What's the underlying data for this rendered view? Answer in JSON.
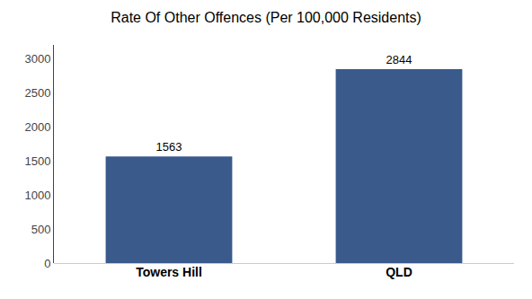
{
  "chart_data": {
    "type": "bar",
    "title": "Rate Of Other Offences (Per 100,000 Residents)",
    "categories": [
      "Towers Hill",
      "QLD"
    ],
    "values": [
      1563,
      2844
    ],
    "color": "#3a5a8c",
    "ylim": [
      0,
      3200
    ],
    "yticks": [
      0,
      500,
      1000,
      1500,
      2000,
      2500,
      3000
    ],
    "grid": false,
    "data_labels": true
  }
}
